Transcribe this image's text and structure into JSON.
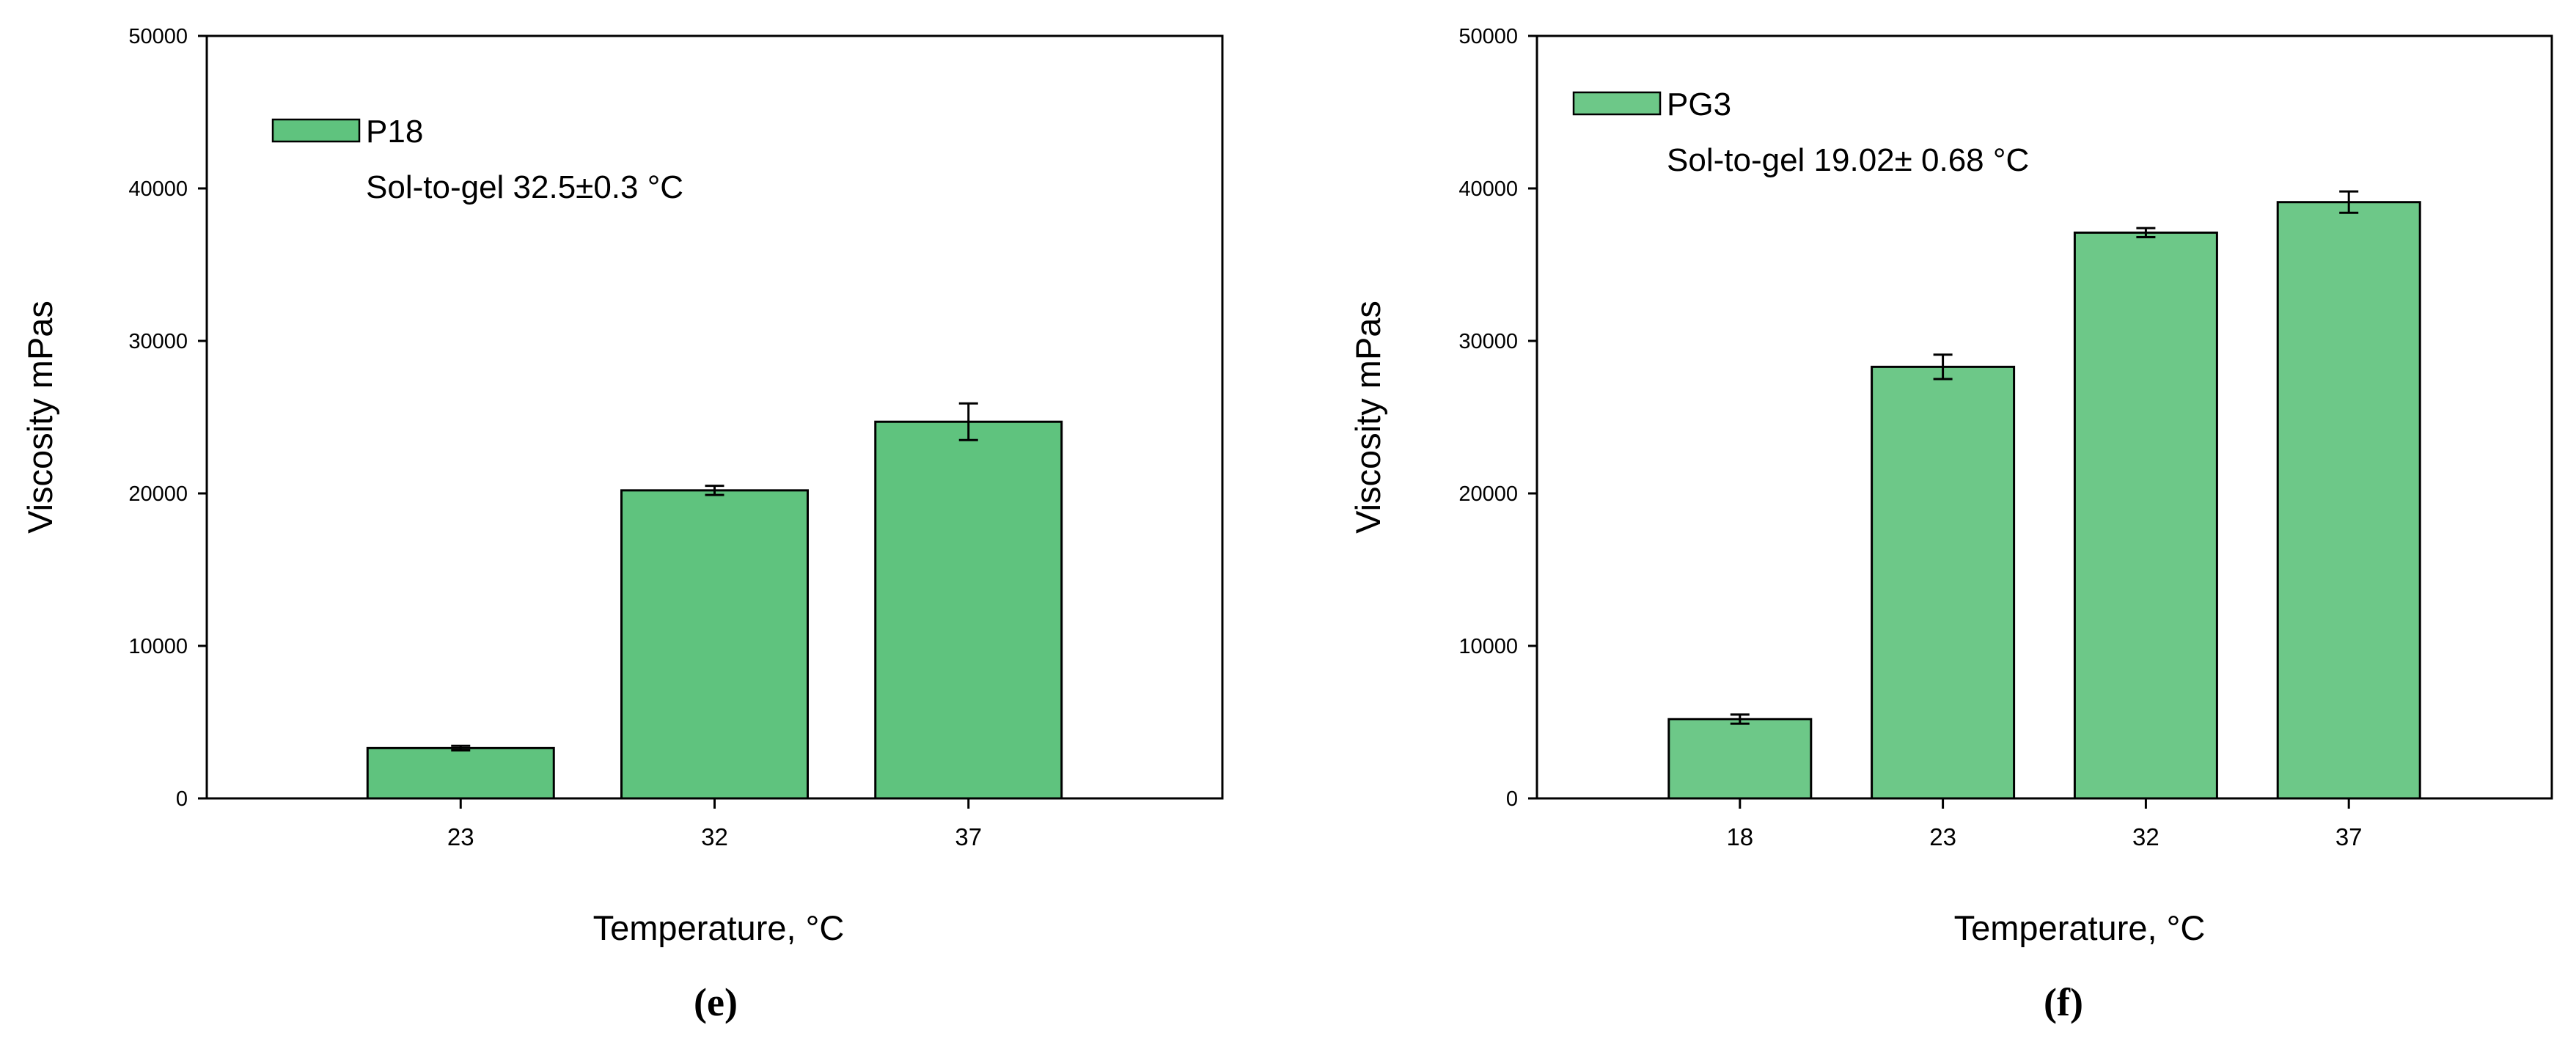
{
  "chart_data": [
    {
      "type": "bar",
      "panel_label": {
        "open": "(",
        "letter": "e",
        "close": ")"
      },
      "categories": [
        "23",
        "32",
        "37"
      ],
      "series": [
        {
          "name": "P18",
          "values": [
            3300,
            20200,
            24700
          ],
          "errors": [
            150,
            300,
            1200
          ],
          "color": "#5fc37e"
        }
      ],
      "legend_note": "Sol-to-gel 32.5±0.3 °C",
      "xlabel": "Temperature, °C",
      "ylabel": "Viscosity mPas",
      "ylim": [
        0,
        50000
      ],
      "yticks": [
        0,
        10000,
        20000,
        30000,
        40000,
        50000
      ],
      "legend_position": "top-left",
      "grid": false
    },
    {
      "type": "bar",
      "panel_label": {
        "open": "(",
        "letter": "f",
        "close": ")"
      },
      "categories": [
        "18",
        "23",
        "32",
        "37"
      ],
      "series": [
        {
          "name": "PG3",
          "values": [
            5200,
            28300,
            37100,
            39100
          ],
          "errors": [
            300,
            800,
            300,
            700
          ],
          "color": "#6dc888"
        }
      ],
      "legend_note": "Sol-to-gel 19.02± 0.68 °C",
      "xlabel": "Temperature, °C",
      "ylabel": "Viscosity mPas",
      "ylim": [
        0,
        50000
      ],
      "yticks": [
        0,
        10000,
        20000,
        30000,
        40000,
        50000
      ],
      "legend_position": "top-left",
      "grid": false
    }
  ]
}
